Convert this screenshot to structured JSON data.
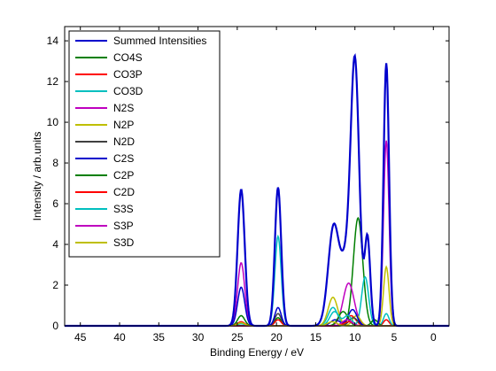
{
  "chart_data": {
    "type": "line",
    "xlabel": "Binding Energy / eV",
    "ylabel": "Intensity / arb.units",
    "xlim": [
      47,
      -2
    ],
    "ylim": [
      0,
      14.7
    ],
    "x_reversed": true,
    "xticks": [
      45,
      40,
      35,
      30,
      25,
      20,
      15,
      10,
      5,
      0
    ],
    "yticks": [
      0,
      2,
      4,
      6,
      8,
      10,
      12,
      14
    ],
    "grid": false,
    "legend_position": "top-left",
    "legend": [
      "Summed Intensities",
      "CO4S",
      "CO3P",
      "CO3D",
      "N2S",
      "N2P",
      "N2D",
      "C2S",
      "C2P",
      "C2D",
      "S3S",
      "S3P",
      "S3D"
    ],
    "series": [
      {
        "name": "Summed Intensities",
        "color": "#0000cc",
        "width": 2.2,
        "peaks": [
          [
            24.5,
            6.7,
            0.45
          ],
          [
            19.8,
            6.8,
            0.4
          ],
          [
            12.7,
            4.9,
            0.7
          ],
          [
            10.0,
            12.9,
            0.55
          ],
          [
            11.2,
            2.6,
            0.6
          ],
          [
            8.4,
            4.3,
            0.35
          ],
          [
            6.0,
            12.9,
            0.35
          ]
        ]
      },
      {
        "name": "CO4S",
        "color": "#007f00",
        "width": 1.5,
        "peaks": [
          [
            24.5,
            0.5,
            0.45
          ],
          [
            19.8,
            0.4,
            0.4
          ],
          [
            9.6,
            5.3,
            0.6
          ]
        ]
      },
      {
        "name": "CO3P",
        "color": "#ff0000",
        "width": 1.5,
        "peaks": [
          [
            24.5,
            0.2,
            0.45
          ],
          [
            19.8,
            0.3,
            0.4
          ],
          [
            10.5,
            0.5,
            0.6
          ],
          [
            6.0,
            0.3,
            0.35
          ]
        ]
      },
      {
        "name": "CO3D",
        "color": "#00bfbf",
        "width": 1.5,
        "peaks": [
          [
            19.8,
            4.4,
            0.4
          ],
          [
            8.7,
            2.4,
            0.45
          ],
          [
            12.8,
            0.9,
            0.6
          ],
          [
            6.0,
            0.6,
            0.35
          ]
        ]
      },
      {
        "name": "N2S",
        "color": "#bf00bf",
        "width": 1.5,
        "peaks": [
          [
            24.5,
            3.1,
            0.45
          ],
          [
            10.8,
            2.1,
            0.7
          ],
          [
            6.0,
            9.1,
            0.35
          ]
        ]
      },
      {
        "name": "N2P",
        "color": "#bfbf00",
        "width": 1.5,
        "peaks": [
          [
            12.8,
            1.4,
            0.6
          ],
          [
            6.0,
            2.9,
            0.35
          ],
          [
            9.8,
            0.5,
            0.5
          ]
        ]
      },
      {
        "name": "N2D",
        "color": "#404040",
        "width": 1.5,
        "peaks": [
          [
            19.8,
            0.6,
            0.4
          ],
          [
            10.2,
            0.4,
            0.55
          ]
        ]
      },
      {
        "name": "C2S",
        "color": "#0000cc",
        "width": 1.5,
        "peaks": [
          [
            24.5,
            1.9,
            0.45
          ],
          [
            19.8,
            0.9,
            0.4
          ],
          [
            12.5,
            0.3,
            0.6
          ],
          [
            10.3,
            0.8,
            0.55
          ]
        ]
      },
      {
        "name": "C2P",
        "color": "#007f00",
        "width": 1.5,
        "peaks": [
          [
            11.5,
            0.7,
            0.6
          ],
          [
            7.5,
            0.3,
            0.4
          ]
        ]
      },
      {
        "name": "C2D",
        "color": "#ff0000",
        "width": 1.5,
        "peaks": [
          [
            10.8,
            0.2,
            0.6
          ]
        ]
      },
      {
        "name": "S3S",
        "color": "#00bfbf",
        "width": 1.5,
        "peaks": [
          [
            24.5,
            0.1,
            0.45
          ],
          [
            12.6,
            0.7,
            0.6
          ],
          [
            10.9,
            0.5,
            0.5
          ]
        ]
      },
      {
        "name": "S3P",
        "color": "#bf00bf",
        "width": 1.5,
        "peaks": [
          [
            11.0,
            0.3,
            0.6
          ]
        ]
      },
      {
        "name": "S3D",
        "color": "#bfbf00",
        "width": 1.5,
        "peaks": [
          [
            24.5,
            0.15,
            0.45
          ],
          [
            12.9,
            0.2,
            0.6
          ]
        ]
      }
    ]
  }
}
